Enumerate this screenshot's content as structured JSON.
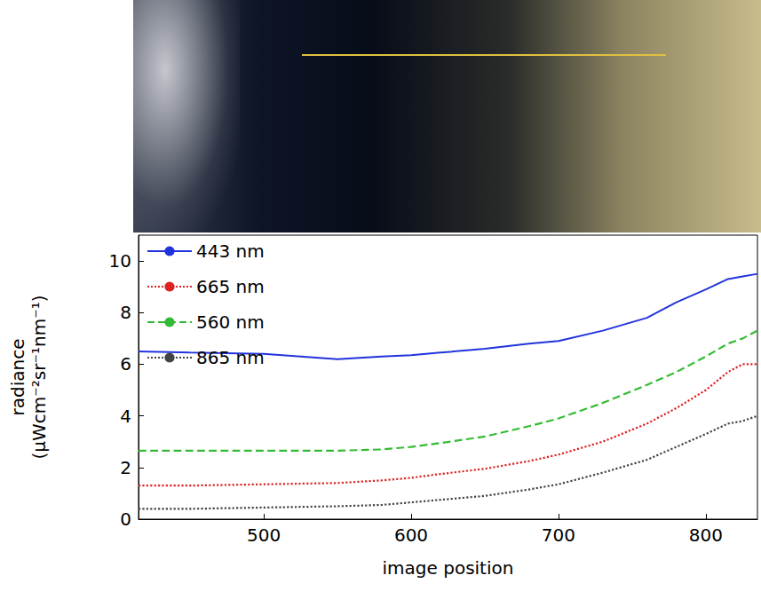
{
  "chart_data": {
    "type": "line",
    "x_label": "image position",
    "y_label": "radiance (μWcm⁻²sr⁻¹nm⁻¹)",
    "x": [
      415,
      450,
      500,
      550,
      580,
      600,
      620,
      650,
      680,
      700,
      730,
      760,
      780,
      800,
      815,
      825,
      835
    ],
    "series": [
      {
        "name": "443 nm",
        "color": "#2233dd",
        "line_style": "solid",
        "values": [
          6.5,
          6.45,
          6.4,
          6.2,
          6.3,
          6.35,
          6.45,
          6.6,
          6.8,
          6.9,
          7.3,
          7.8,
          8.4,
          8.9,
          9.3,
          9.4,
          9.5
        ]
      },
      {
        "name": "560 nm",
        "color": "#33bb33",
        "line_style": "dashed",
        "values": [
          2.65,
          2.65,
          2.65,
          2.65,
          2.7,
          2.8,
          2.95,
          3.2,
          3.6,
          3.9,
          4.5,
          5.2,
          5.7,
          6.3,
          6.8,
          7.0,
          7.3
        ]
      },
      {
        "name": "665 nm",
        "color": "#dd2222",
        "line_style": "dotted",
        "values": [
          1.3,
          1.3,
          1.35,
          1.4,
          1.5,
          1.6,
          1.75,
          1.95,
          2.25,
          2.5,
          3.0,
          3.7,
          4.3,
          5.0,
          5.7,
          6.0,
          6.0
        ]
      },
      {
        "name": "865 nm",
        "color": "#444444",
        "line_style": "dotted",
        "values": [
          0.4,
          0.4,
          0.45,
          0.5,
          0.55,
          0.65,
          0.75,
          0.9,
          1.15,
          1.35,
          1.8,
          2.3,
          2.8,
          3.3,
          3.7,
          3.8,
          4.0
        ]
      }
    ],
    "xlim": [
      415,
      835
    ],
    "xticks": [
      500,
      600,
      700,
      800
    ],
    "ylim": [
      0,
      11
    ],
    "yticks": [
      0,
      2,
      4,
      6,
      8,
      10
    ],
    "grid": false,
    "legend": "upper left"
  }
}
